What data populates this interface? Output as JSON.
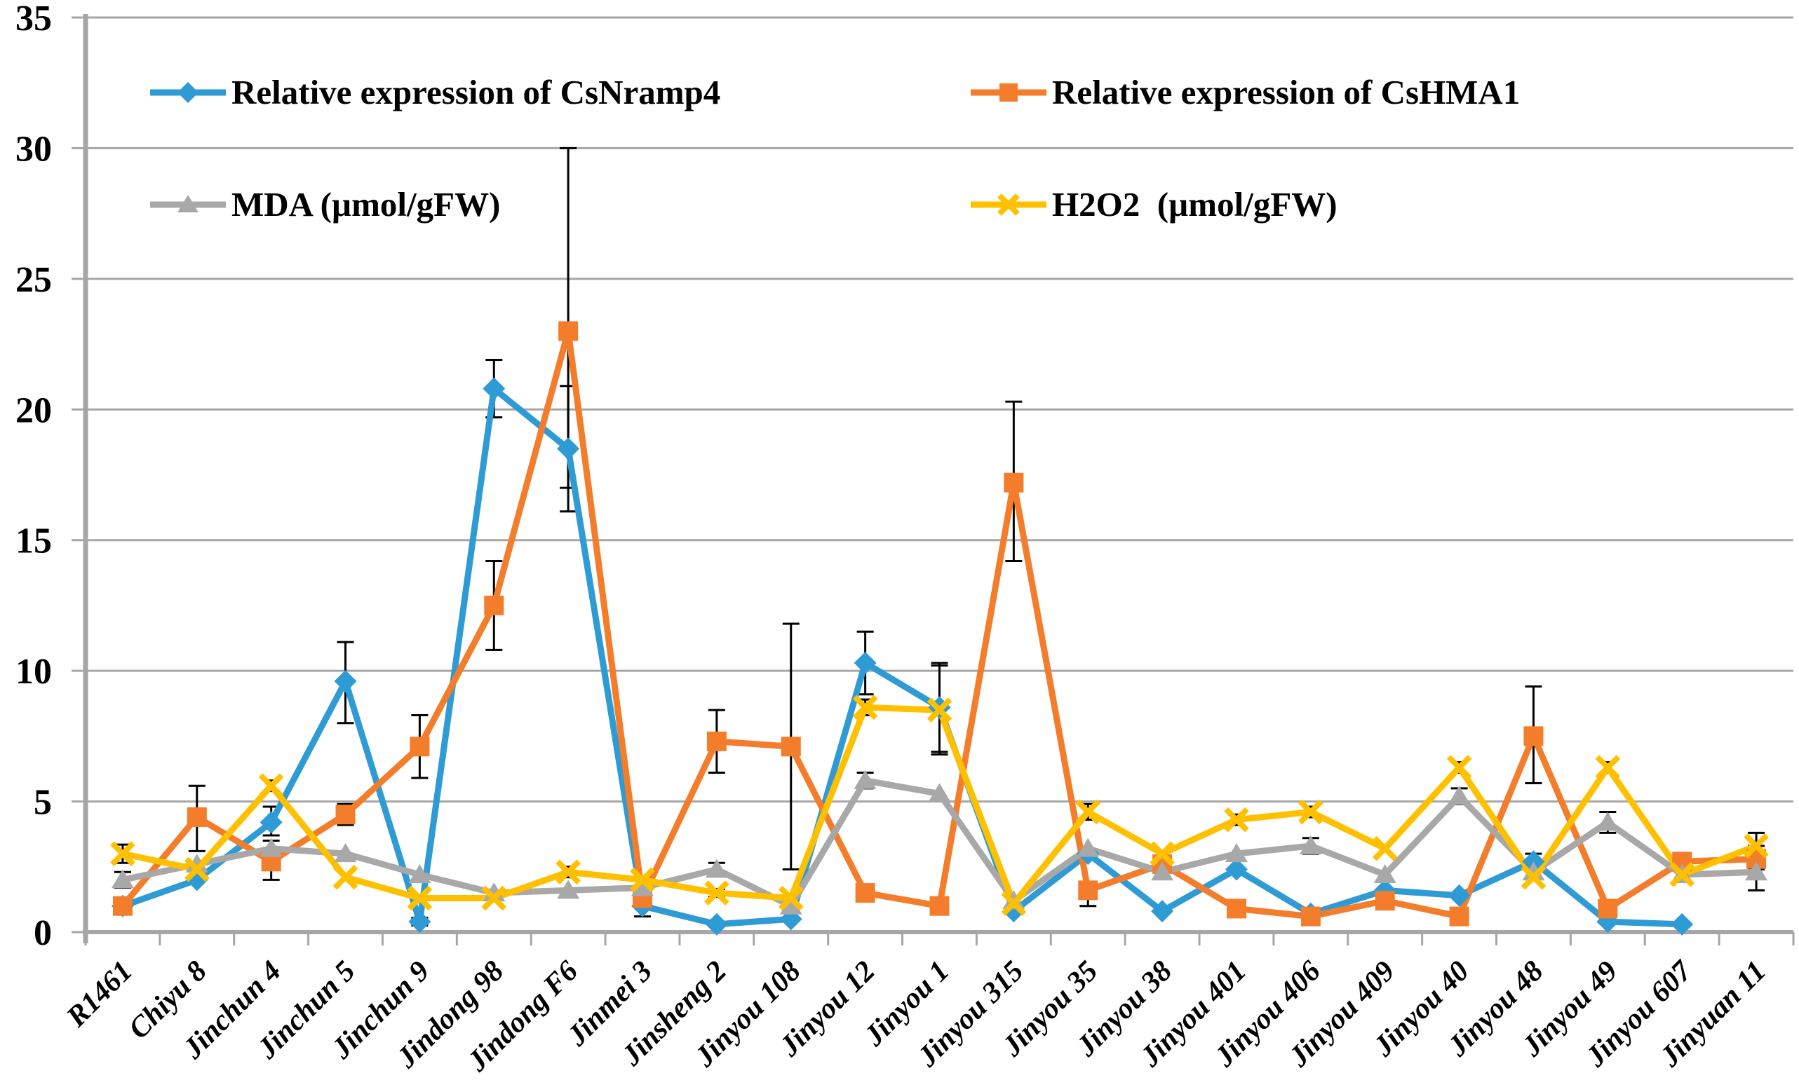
{
  "page": {
    "background": "#FFFFFF"
  },
  "chart_data": {
    "type": "line",
    "title": "",
    "xlabel": "",
    "ylabel": "",
    "ylim": [
      0,
      35
    ],
    "ytick_step": 5,
    "ytick_labels": [
      "0",
      "5",
      "10",
      "15",
      "20",
      "25",
      "30",
      "35"
    ],
    "grid": true,
    "legend_position": "top-left-two-rows",
    "axis_color": "#A6A6A6",
    "gridline_color": "#A6A6A6",
    "error_bar_color": "#000000",
    "categories": [
      "R1461",
      "Chiyu 8",
      "Jinchun 4",
      "Jinchun 5",
      "Jinchun 9",
      "Jindong 98",
      "Jindong F6",
      "Jinmei 3",
      "Jinsheng 2",
      "Jinyou 108",
      "Jinyou 12",
      "Jinyou 1",
      "Jinyou 315",
      "Jinyou 35",
      "Jinyou 38",
      "Jinyou 401",
      "Jinyou 406",
      "Jinyou 409",
      "Jinyou 40",
      "Jinyou 48",
      "Jinyou 49",
      "Jinyou 607",
      "Jinyuan 11"
    ],
    "series": [
      {
        "name": "Relative expression of CsNramp4",
        "color": "#2E9BD5",
        "marker": "diamond",
        "values": [
          1.0,
          2.0,
          4.2,
          9.6,
          0.4,
          20.8,
          18.5,
          1.0,
          0.3,
          0.5,
          10.3,
          8.6,
          0.8,
          3.0,
          0.8,
          2.4,
          0.7,
          1.6,
          1.4,
          2.7,
          0.4,
          0.3,
          null
        ],
        "errors": [
          [
            0.2,
            0.2
          ],
          null,
          [
            0.5,
            0.6
          ],
          [
            1.6,
            1.5
          ],
          [
            0.15,
            0.15
          ],
          [
            1.1,
            1.1
          ],
          [
            2.4,
            2.4
          ],
          [
            0.4,
            0.2
          ],
          null,
          null,
          [
            1.2,
            1.2
          ],
          [
            1.7,
            1.7
          ],
          null,
          null,
          null,
          null,
          null,
          null,
          null,
          [
            0.3,
            0.3
          ],
          null,
          null,
          null
        ]
      },
      {
        "name": "Relative expression of CsHMA1",
        "color": "#F47D2C",
        "marker": "square",
        "values": [
          1.0,
          4.4,
          2.7,
          4.5,
          7.1,
          12.5,
          23.0,
          1.3,
          7.3,
          7.1,
          1.5,
          1.0,
          17.2,
          1.6,
          2.6,
          0.9,
          0.6,
          1.2,
          0.6,
          7.5,
          0.9,
          2.7,
          2.8
        ],
        "errors": [
          null,
          [
            1.3,
            1.2
          ],
          [
            0.7,
            0.3
          ],
          [
            0.4,
            0.4
          ],
          [
            1.2,
            1.2
          ],
          [
            1.7,
            1.7
          ],
          [
            6.0,
            7.0
          ],
          null,
          [
            1.2,
            1.2
          ],
          [
            4.7,
            4.7
          ],
          [
            0.3,
            0.3
          ],
          null,
          [
            3.0,
            3.1
          ],
          [
            0.6,
            0.3
          ],
          null,
          null,
          null,
          null,
          null,
          [
            1.8,
            1.9
          ],
          null,
          [
            0.3,
            0.3
          ],
          [
            0.4,
            0.5
          ]
        ]
      },
      {
        "name": "MDA (µmol/gFW)",
        "color": "#A8A8A8",
        "marker": "triangle",
        "values": [
          2.0,
          2.6,
          3.2,
          3.0,
          2.2,
          1.5,
          1.6,
          1.7,
          2.4,
          1.0,
          5.8,
          5.3,
          1.2,
          3.2,
          2.3,
          3.0,
          3.3,
          2.2,
          5.2,
          2.3,
          4.2,
          2.2,
          2.3
        ],
        "errors": [
          [
            0.3,
            0.3
          ],
          null,
          [
            0.3,
            0.3
          ],
          null,
          null,
          null,
          null,
          null,
          [
            0.25,
            0.25
          ],
          null,
          [
            0.3,
            0.3
          ],
          null,
          null,
          null,
          null,
          null,
          [
            0.3,
            0.3
          ],
          null,
          [
            0.3,
            0.3
          ],
          null,
          [
            0.4,
            0.4
          ],
          null,
          [
            0.7,
            0.3
          ]
        ]
      },
      {
        "name": "H2O2  (µmol/gFW)",
        "color": "#FFC000",
        "marker": "x",
        "values": [
          3.0,
          2.4,
          5.6,
          2.1,
          1.3,
          1.3,
          2.3,
          2.0,
          1.5,
          1.3,
          8.6,
          8.5,
          1.1,
          4.6,
          3.0,
          4.3,
          4.6,
          3.2,
          6.3,
          2.1,
          6.3,
          2.2,
          3.3
        ],
        "errors": [
          [
            0.35,
            0.35
          ],
          null,
          [
            0.2,
            0.2
          ],
          null,
          null,
          null,
          [
            0.2,
            0.2
          ],
          null,
          [
            0.15,
            0.15
          ],
          null,
          [
            0.3,
            0.3
          ],
          [
            1.7,
            1.7
          ],
          null,
          [
            0.3,
            0.3
          ],
          null,
          [
            0.2,
            0.2
          ],
          [
            0.2,
            0.2
          ],
          null,
          [
            0.2,
            0.2
          ],
          null,
          [
            0.2,
            0.2
          ],
          null,
          [
            0.5,
            0.5
          ]
        ]
      }
    ]
  }
}
